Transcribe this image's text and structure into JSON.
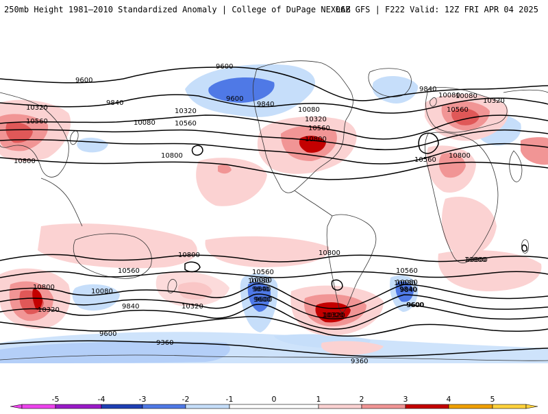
{
  "header": {
    "left_title": "250mb Height 1981–2010 Standardized Anomaly | College of DuPage NEXLAB",
    "right_title": "06Z GFS | F222 Valid: 12Z FRI APR 04 2025"
  },
  "colors": {
    "neg5": "#ee44ee",
    "neg4": "#9a1ac8",
    "neg3": "#1e3fb4",
    "neg2": "#4f79e6",
    "neg1": "#c6defa",
    "zero": "#ffffff",
    "pos1": "#fbd2d2",
    "pos2": "#f19595",
    "pos3": "#e05858",
    "pos4": "#c40000",
    "pos5": "#f0a000",
    "pos6": "#ffd23c",
    "coast": "#333333"
  },
  "colorbar": {
    "ticks": [
      "-5",
      "-4",
      "-3",
      "-2",
      "-1",
      "0",
      "1",
      "2",
      "3",
      "4",
      "5"
    ]
  },
  "contour_labels": [
    "9600",
    "9600",
    "9840",
    "10080",
    "10320",
    "10560",
    "10080",
    "10320",
    "10560",
    "10800",
    "9840",
    "9600",
    "10080",
    "10320",
    "10560",
    "10800",
    "9840",
    "10080",
    "10320",
    "10560",
    "10560",
    "10800",
    "10800",
    "10800",
    "10560",
    "10800",
    "10320",
    "10080",
    "9840",
    "10080",
    "10320",
    "9840",
    "9600",
    "10080",
    "9840",
    "9600",
    "10800",
    "10560",
    "10320",
    "10080",
    "9840",
    "9600",
    "9600",
    "9360",
    "9360",
    "10320",
    "10080",
    "9840",
    "9600",
    "10800",
    "10560",
    "10800"
  ]
}
